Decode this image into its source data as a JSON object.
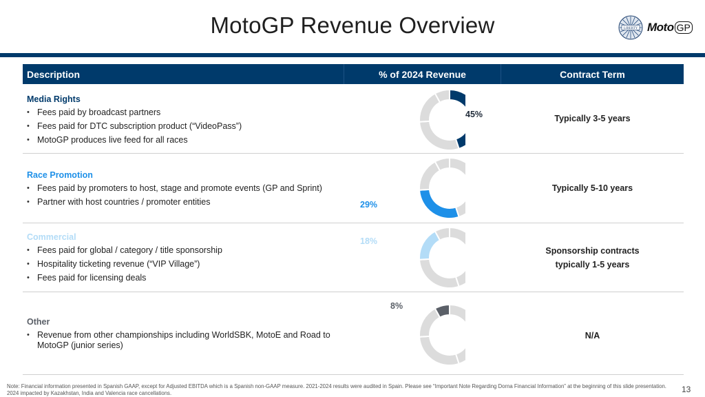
{
  "slide": {
    "title": "MotoGP Revenue Overview",
    "page_number": "13",
    "logos": {
      "liberty_text": "LIBERTY",
      "motogp_text": "Moto",
      "motogp_gp": "GP"
    }
  },
  "table": {
    "headers": [
      "Description",
      "% of 2024 Revenue",
      "Contract Term"
    ],
    "rows": [
      {
        "category": "Media Rights",
        "category_color": "#003a6b",
        "bullets": [
          "Fees paid by broadcast partners",
          "Fees paid for DTC subscription product (“VideoPass”)",
          "MotoGP produces live feed for all races"
        ],
        "percent_label": "45%",
        "contract_term": [
          "Typically 3-5 years"
        ]
      },
      {
        "category": "Race Promotion",
        "category_color": "#1e90e8",
        "bullets": [
          "Fees paid by promoters to host, stage and promote events (GP and Sprint)",
          "Partner with host countries / promoter entities"
        ],
        "percent_label": "29%",
        "contract_term": [
          "Typically 5-10 years"
        ]
      },
      {
        "category": "Commercial",
        "category_color": "#b3dcf7",
        "bullets": [
          "Fees paid for global / category / title sponsorship",
          "Hospitality ticketing revenue (“VIP Village”)",
          "Fees paid for licensing deals"
        ],
        "percent_label": "18%",
        "contract_term": [
          "Sponsorship contracts",
          "typically 1-5 years"
        ]
      },
      {
        "category": "Other",
        "category_color": "#5b6068",
        "bullets": [
          "Revenue from other championships including WorldSBK, MotoE and Road to MotoGP (junior series)"
        ],
        "percent_label": "8%",
        "contract_term": [
          "N/A"
        ]
      }
    ]
  },
  "chart_data": {
    "type": "pie",
    "variant": "donut",
    "title": "% of 2024 Revenue",
    "categories": [
      "Media Rights",
      "Race Promotion",
      "Commercial",
      "Other"
    ],
    "values": [
      45,
      29,
      18,
      8
    ],
    "colors": [
      "#003a6b",
      "#1e90e8",
      "#b3dcf7",
      "#5b6068"
    ],
    "base_color": "#dcdcdc",
    "unit": "%"
  },
  "footnote": "Note: Financial information presented in Spanish GAAP, except for Adjusted EBITDA which is a Spanish non-GAAP measure. 2021-2024 results were audited in Spain. Please see “Important Note Regarding Dorna Financial Information” at the beginning of this slide presentation. 2024 impacted by Kazakhstan, India and Valencia race cancellations."
}
